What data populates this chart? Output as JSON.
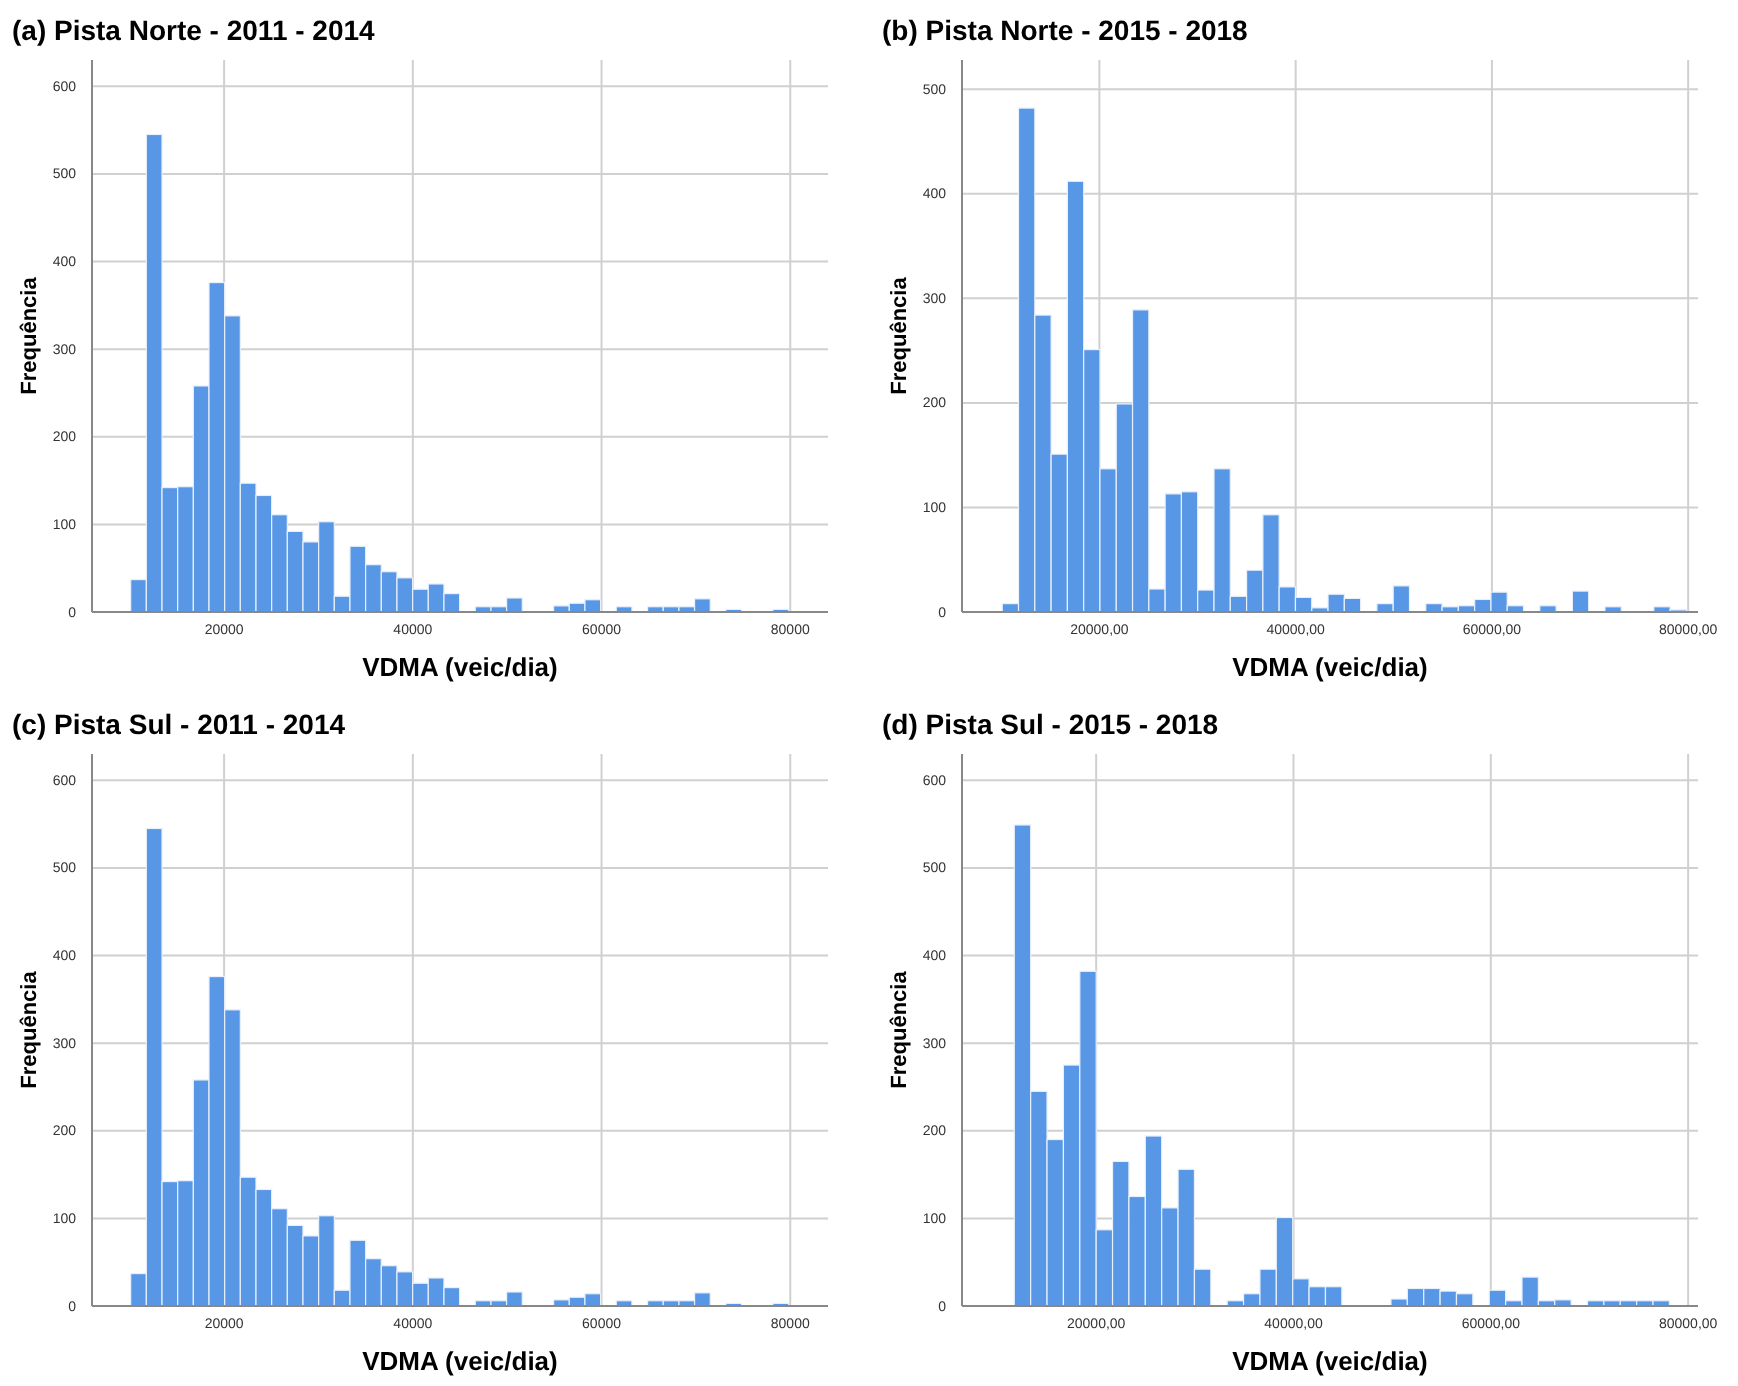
{
  "chart_data": [
    {
      "type": "histogram",
      "title": "(a) Pista Norte - 2011 - 2014",
      "xlabel": "VDMA (veic/dia)",
      "ylabel": "Frequência",
      "color": "#5897e6",
      "grid": true,
      "bins": [
        10100,
        11760,
        13420,
        15080,
        16740,
        18400,
        20060,
        21720,
        23380,
        25040,
        26700,
        28360,
        30020,
        31680,
        33340,
        35000,
        36660,
        38320,
        39980,
        41640,
        43300,
        44960,
        46620,
        48280,
        49940,
        51600,
        53260,
        54920,
        56580,
        58240,
        59900,
        61560,
        63220,
        64880,
        66540,
        68200,
        69860,
        71520,
        73180,
        74840,
        76500,
        78160,
        79820
      ],
      "values": [
        37,
        545,
        142,
        143,
        258,
        376,
        338,
        147,
        133,
        111,
        92,
        80,
        103,
        18,
        75,
        54,
        46,
        39,
        26,
        32,
        21,
        0,
        6,
        6,
        16,
        0,
        0,
        7,
        10,
        14,
        0,
        6,
        0,
        6,
        6,
        6,
        15,
        0,
        3,
        0,
        0,
        3
      ],
      "xlim": [
        6000,
        84000
      ],
      "xticks": [
        20000,
        40000,
        60000,
        80000
      ],
      "ylim": [
        0,
        630
      ],
      "yticks": [
        0,
        100,
        200,
        300,
        400,
        500,
        600
      ]
    },
    {
      "type": "histogram",
      "title": "(b) Pista Norte - 2015 - 2018",
      "xlabel": "VDMA (veic/dia)",
      "ylabel": "Frequência",
      "color": "#5897e6",
      "grid": true,
      "bins": [
        10100,
        11760,
        13420,
        15080,
        16740,
        18400,
        20060,
        21720,
        23380,
        25040,
        26700,
        28360,
        30020,
        31680,
        33340,
        35000,
        36660,
        38320,
        39980,
        41640,
        43300,
        44960,
        46620,
        48280,
        49940,
        51600,
        53260,
        54920,
        56580,
        58240,
        59900,
        61560,
        63220,
        64880,
        66540,
        68200,
        69860,
        71520,
        73180,
        74840,
        76500,
        78160,
        79820
      ],
      "values": [
        8,
        482,
        284,
        151,
        412,
        251,
        137,
        199,
        289,
        22,
        113,
        115,
        21,
        137,
        15,
        40,
        93,
        24,
        14,
        4,
        17,
        13,
        0,
        8,
        25,
        0,
        8,
        5,
        6,
        12,
        19,
        6,
        0,
        6,
        0,
        20,
        0,
        5,
        0,
        0,
        5,
        2
      ],
      "xlim": [
        6000,
        81000
      ],
      "xticks": [
        {
          "value": 20000,
          "label": "20000,00"
        },
        {
          "value": 40000,
          "label": "40000,00"
        },
        {
          "value": 60000,
          "label": "60000,00"
        },
        {
          "value": 80000,
          "label": "80000,00"
        }
      ],
      "ylim": [
        0,
        528
      ],
      "yticks": [
        0,
        100,
        200,
        300,
        400,
        500
      ]
    },
    {
      "type": "histogram",
      "title": "(c) Pista Sul - 2011 - 2014",
      "xlabel": "VDMA (veic/dia)",
      "ylabel": "Frequência",
      "color": "#5897e6",
      "grid": true,
      "bins": [
        10100,
        11760,
        13420,
        15080,
        16740,
        18400,
        20060,
        21720,
        23380,
        25040,
        26700,
        28360,
        30020,
        31680,
        33340,
        35000,
        36660,
        38320,
        39980,
        41640,
        43300,
        44960,
        46620,
        48280,
        49940,
        51600,
        53260,
        54920,
        56580,
        58240,
        59900,
        61560,
        63220,
        64880,
        66540,
        68200,
        69860,
        71520,
        73180,
        74840,
        76500,
        78160,
        79820
      ],
      "values": [
        37,
        545,
        142,
        143,
        258,
        376,
        338,
        147,
        133,
        111,
        92,
        80,
        103,
        18,
        75,
        54,
        46,
        39,
        26,
        32,
        21,
        0,
        6,
        6,
        16,
        0,
        0,
        7,
        10,
        14,
        0,
        6,
        0,
        6,
        6,
        6,
        15,
        0,
        3,
        0,
        0,
        3
      ],
      "xlim": [
        6000,
        84000
      ],
      "xticks": [
        20000,
        40000,
        60000,
        80000
      ],
      "ylim": [
        0,
        630
      ],
      "yticks": [
        0,
        100,
        200,
        300,
        400,
        500,
        600
      ]
    },
    {
      "type": "histogram",
      "title": "(d) Pista Sul - 2015 - 2018",
      "xlabel": "VDMA (veic/dia)",
      "ylabel": "Frequência",
      "color": "#5897e6",
      "grid": true,
      "bins": [
        11700,
        13360,
        15020,
        16680,
        18340,
        20000,
        21660,
        23320,
        24980,
        26640,
        28300,
        29960,
        31620,
        33280,
        34940,
        36600,
        38260,
        39920,
        41580,
        43240,
        44900,
        46560,
        48220,
        49880,
        51540,
        53200,
        54860,
        56520,
        58180,
        59840,
        61500,
        63160,
        64820,
        66480,
        68140,
        69800,
        71460,
        73120,
        74780,
        76440,
        78100
      ],
      "values": [
        549,
        245,
        190,
        275,
        382,
        87,
        165,
        125,
        194,
        112,
        156,
        42,
        0,
        6,
        14,
        42,
        101,
        31,
        22,
        22,
        0,
        0,
        0,
        8,
        20,
        20,
        17,
        14,
        0,
        18,
        6,
        33,
        6,
        7,
        0,
        6,
        6,
        6,
        6,
        6
      ],
      "xlim": [
        6400,
        81000
      ],
      "xticks": [
        {
          "value": 20000,
          "label": "20000,00"
        },
        {
          "value": 40000,
          "label": "40000,00"
        },
        {
          "value": 60000,
          "label": "60000,00"
        },
        {
          "value": 80000,
          "label": "80000,00"
        }
      ],
      "ylim": [
        0,
        630
      ],
      "yticks": [
        0,
        100,
        200,
        300,
        400,
        500,
        600
      ]
    }
  ]
}
